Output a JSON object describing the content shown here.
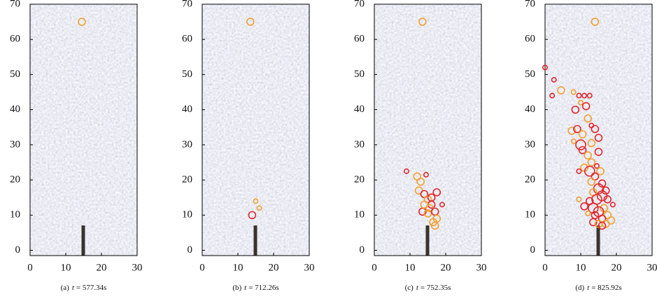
{
  "chart_data": [
    {
      "type": "scatter",
      "caption": {
        "label": "(a)",
        "variable": "t",
        "value": "= 577.34s"
      },
      "x": [
        14.5
      ],
      "y": [
        65
      ],
      "sizes": [
        2
      ],
      "colors": [
        "#f0a030"
      ],
      "xlim": [
        0,
        30
      ],
      "ylim": [
        -1.5,
        70
      ],
      "xticks": [
        0,
        10,
        20,
        30
      ],
      "yticks": [
        0,
        10,
        20,
        30,
        40,
        50,
        60,
        70
      ]
    },
    {
      "type": "scatter",
      "caption": {
        "label": "(b)",
        "variable": "t",
        "value": "= 712.26s"
      },
      "x": [
        13.5,
        15,
        16,
        14
      ],
      "y": [
        65,
        14,
        12,
        10
      ],
      "sizes": [
        2,
        1,
        1,
        2
      ],
      "colors": [
        "#f0a030",
        "#f0a030",
        "#f0a030",
        "#e2262a"
      ],
      "xlim": [
        0,
        30
      ],
      "ylim": [
        -1.5,
        70
      ],
      "xticks": [
        0,
        10,
        20,
        30
      ],
      "yticks": [
        0,
        10,
        20,
        30,
        40,
        50,
        60,
        70
      ]
    },
    {
      "type": "scatter",
      "caption": {
        "label": "(c)",
        "variable": "t",
        "value": "= 752.35s"
      },
      "x": [
        13.5,
        9,
        12,
        14.5,
        13,
        12.5,
        14,
        15,
        16,
        15.5,
        17.5,
        19,
        13.5,
        15,
        17,
        17.5,
        16.5,
        17,
        14,
        16
      ],
      "y": [
        65,
        22.5,
        21,
        21.5,
        19.5,
        17,
        16,
        14.5,
        13,
        12,
        16.5,
        13,
        11,
        10.5,
        11,
        9,
        8,
        7,
        13,
        15
      ],
      "sizes": [
        2,
        1,
        2,
        1,
        2,
        2,
        2,
        2,
        2,
        2,
        2,
        1,
        2,
        2,
        2,
        2,
        2,
        2,
        2,
        2
      ],
      "colors": [
        "#f0a030",
        "#e2262a",
        "#f0a030",
        "#e2262a",
        "#f0a030",
        "#f0a030",
        "#e2262a",
        "#f0a030",
        "#e2262a",
        "#f0a030",
        "#e2262a",
        "#e2262a",
        "#e2262a",
        "#f0a030",
        "#e2262a",
        "#f0a030",
        "#f0a030",
        "#f0a030",
        "#f0a030",
        "#e2262a"
      ],
      "xlim": [
        0,
        30
      ],
      "ylim": [
        -1.5,
        70
      ],
      "xticks": [
        0,
        10,
        20,
        30
      ],
      "yticks": [
        0,
        10,
        20,
        30,
        40,
        50,
        60,
        70
      ]
    },
    {
      "type": "scatter",
      "caption": {
        "label": "(d)",
        "variable": "t",
        "value": "= 825.92s"
      },
      "x": [
        14,
        0,
        2.5,
        4.5,
        2,
        8,
        9.5,
        11,
        12.5,
        10,
        11.5,
        8.5,
        12,
        13,
        7.5,
        9,
        14,
        10.5,
        15,
        8,
        10,
        13,
        10.5,
        12,
        15,
        13,
        14.5,
        11,
        12.5,
        9.5,
        15.5,
        14,
        13,
        16,
        15,
        17,
        13.5,
        16,
        14.5,
        12.5,
        17.5,
        9.5,
        19,
        11,
        13.5,
        16.5,
        15,
        12,
        14,
        17.5,
        16,
        18.5,
        13.5,
        15,
        17,
        16
      ],
      "y": [
        65,
        52,
        48.5,
        45.5,
        44,
        45,
        44,
        44,
        44,
        42,
        41,
        40,
        37.5,
        35.5,
        34,
        34.5,
        34.5,
        33,
        32,
        31,
        30,
        30.5,
        28.5,
        27,
        28,
        25,
        24,
        23.5,
        22.5,
        22.5,
        22.5,
        21,
        19.5,
        19,
        17.5,
        17,
        16.5,
        15.5,
        14.5,
        14,
        14.5,
        14.5,
        13,
        12.5,
        12,
        12,
        11,
        10.5,
        10,
        10,
        9,
        8.5,
        8,
        7.5,
        7.5,
        7
      ],
      "sizes": [
        2,
        1,
        1,
        2,
        1,
        1,
        1,
        1,
        1,
        1,
        2,
        2,
        2,
        1,
        2,
        2,
        2,
        2,
        2,
        1,
        3,
        2,
        2,
        2,
        2,
        2,
        1,
        2,
        3,
        1,
        2,
        2,
        2,
        2,
        3,
        2,
        2,
        3,
        3,
        2,
        2,
        1,
        1,
        2,
        3,
        2,
        3,
        1,
        2,
        2,
        2,
        2,
        2,
        2,
        2,
        2
      ],
      "colors": [
        "#f0a030",
        "#e2262a",
        "#e2262a",
        "#f0a030",
        "#e2262a",
        "#f0a030",
        "#e2262a",
        "#e2262a",
        "#e2262a",
        "#f0a030",
        "#e2262a",
        "#e2262a",
        "#f0a030",
        "#e2262a",
        "#f0a030",
        "#e2262a",
        "#e2262a",
        "#f0a030",
        "#e2262a",
        "#f0a030",
        "#e2262a",
        "#f0a030",
        "#e2262a",
        "#f0a030",
        "#e2262a",
        "#f0a030",
        "#e2262a",
        "#f0a030",
        "#e2262a",
        "#e2262a",
        "#f0a030",
        "#e2262a",
        "#f0a030",
        "#e2262a",
        "#e2262a",
        "#e2262a",
        "#f0a030",
        "#e2262a",
        "#e2262a",
        "#e2262a",
        "#e2262a",
        "#f0a030",
        "#e2262a",
        "#e2262a",
        "#e2262a",
        "#f0a030",
        "#e2262a",
        "#f0a030",
        "#e2262a",
        "#f0a030",
        "#e2262a",
        "#f0a030",
        "#e2262a",
        "#f0a030",
        "#f0a030",
        "#e2262a"
      ],
      "xlim": [
        0,
        30
      ],
      "ylim": [
        -1.5,
        70
      ],
      "xticks": [
        0,
        10,
        20,
        30
      ],
      "yticks": [
        0,
        10,
        20,
        30,
        40,
        50,
        60,
        70
      ]
    }
  ]
}
